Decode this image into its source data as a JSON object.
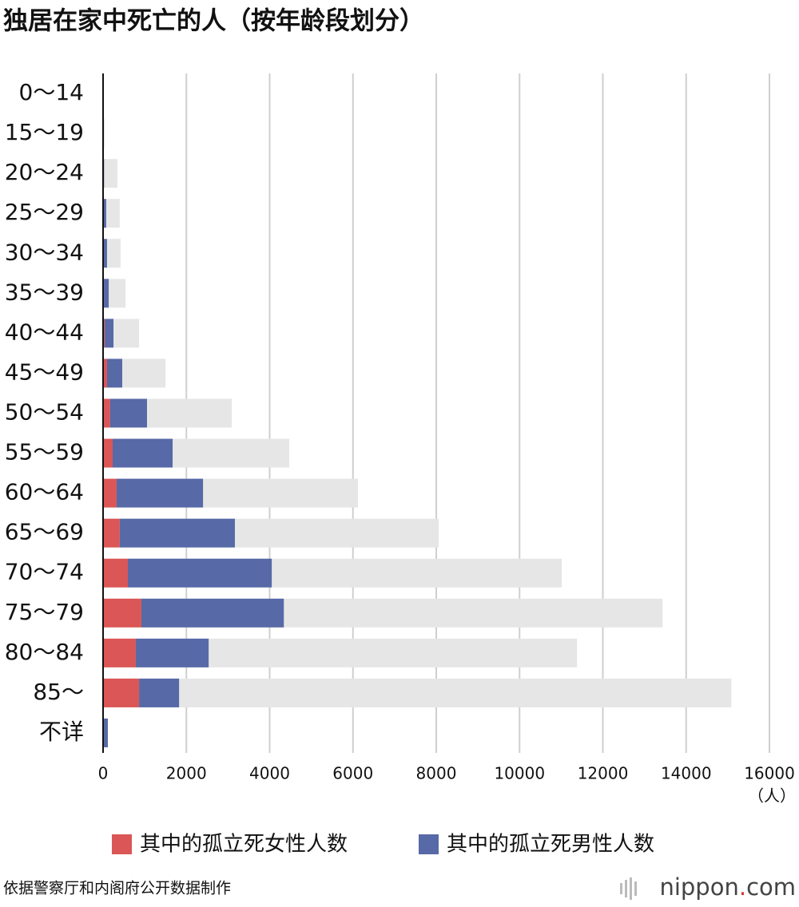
{
  "chart_data": {
    "type": "bar",
    "orientation": "horizontal",
    "title": "独居在家中死亡的人（按年龄段划分）",
    "categories": [
      "0～14",
      "15～19",
      "20～24",
      "25～29",
      "30～34",
      "35～39",
      "40～44",
      "45～49",
      "50～54",
      "55～59",
      "60～64",
      "65～69",
      "70～74",
      "75～79",
      "80～84",
      "85～",
      "不详"
    ],
    "series": [
      {
        "name": "其中的孤立死女性人数",
        "color": "#db5656",
        "values": [
          0,
          0,
          5,
          10,
          15,
          20,
          40,
          95,
          170,
          230,
          325,
          400,
          595,
          920,
          785,
          865,
          5
        ]
      },
      {
        "name": "其中的孤立死男性人数",
        "color": "#5769a6",
        "values": [
          0,
          10,
          20,
          65,
          80,
          115,
          210,
          365,
          885,
          1440,
          2075,
          2765,
          3455,
          3420,
          1750,
          960,
          110
        ]
      },
      {
        "color": "#e6e6e6",
        "values": [
          5,
          40,
          345,
          400,
          420,
          540,
          865,
          1500,
          3090,
          4470,
          6120,
          8060,
          11015,
          13435,
          11380,
          15085,
          120
        ]
      }
    ],
    "xlim": [
      0,
      16000
    ],
    "xticks": [
      0,
      2000,
      4000,
      6000,
      8000,
      10000,
      12000,
      14000,
      16000
    ],
    "grid": true,
    "x_unit": "（人）",
    "source": "依据警察厅和内阁府公开数据制作",
    "brand": [
      "nippon",
      ".",
      "com"
    ]
  }
}
